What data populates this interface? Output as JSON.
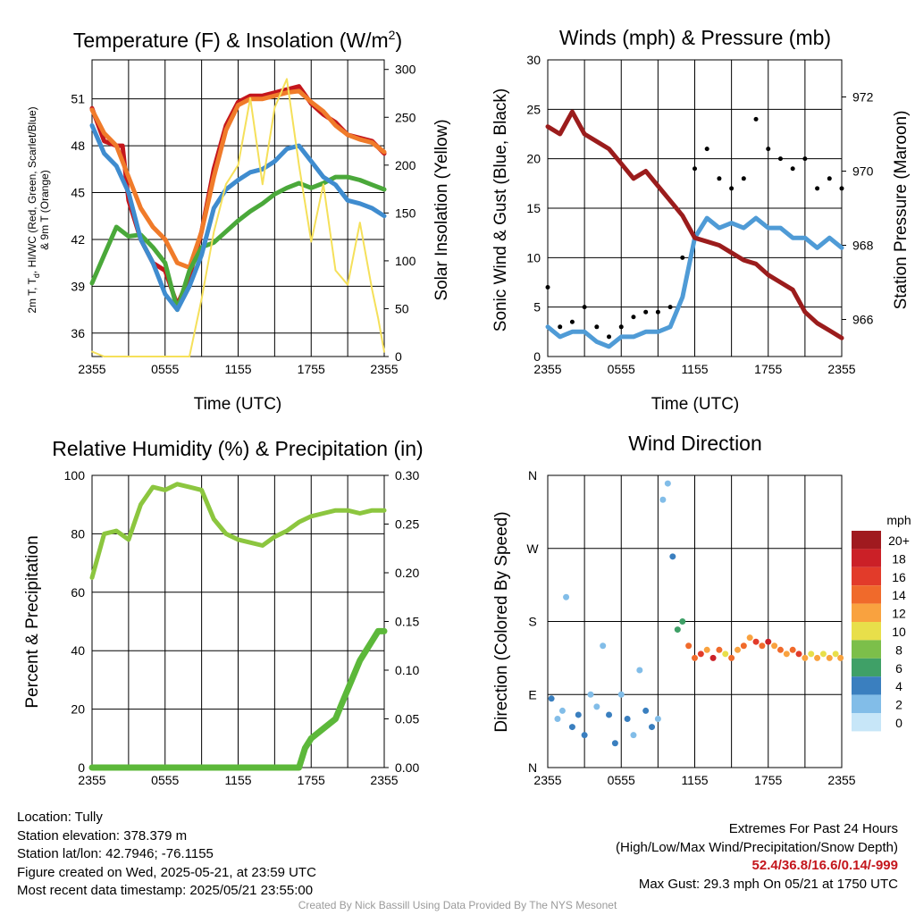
{
  "charts": {
    "temperature": {
      "title": "Temperature (F) & Insolation (W/m",
      "title_sup": "2",
      "title_end": ")",
      "ylabel_line1": "2m T, T",
      "ylabel_sub": "d",
      "ylabel_line1_end": ", HI/WC (Red, Green, Scarlet/Blue)",
      "ylabel_line2": "& 9m T (Orange)",
      "y2label": "Solar Insolation (Yellow)",
      "xlabel": "Time (UTC)"
    },
    "winds": {
      "title": "Winds (mph) & Pressure (mb)",
      "ylabel": "Sonic Wind & Gust (Blue, Black)",
      "y2label": "Station Pressure (Maroon)",
      "xlabel": "Time (UTC)"
    },
    "humidity": {
      "title": "Relative Humidity (%) & Precipitation (in)",
      "ylabel": "Percent & Precipitation"
    },
    "direction": {
      "title": "Wind Direction",
      "ylabel": "Direction (Colored By Speed)",
      "legend_unit": "mph",
      "legend_labels": [
        "20+",
        "18",
        "16",
        "14",
        "12",
        "10",
        "8",
        "6",
        "4",
        "2",
        "0"
      ],
      "legend_colors": [
        "#a01a1f",
        "#cb2027",
        "#e23b2a",
        "#f06a2b",
        "#f9a23f",
        "#e8df4a",
        "#7cbf4a",
        "#3fa067",
        "#3a7fbf",
        "#82bde8",
        "#c7e6f8"
      ]
    }
  },
  "chart_data": [
    {
      "type": "line",
      "title": "Temperature (F) & Insolation (W/m2)",
      "xlabel": "Time (UTC)",
      "x_ticks": [
        "2355",
        "0555",
        "1155",
        "1755",
        "2355"
      ],
      "x_hours": [
        0,
        24
      ],
      "y_ticks": [
        36,
        39,
        42,
        45,
        48,
        51
      ],
      "ylim": [
        34.5,
        53.5
      ],
      "y2_ticks": [
        0,
        50,
        100,
        150,
        200,
        250,
        300
      ],
      "y2lim": [
        0,
        310
      ],
      "series": [
        {
          "name": "2m T (Red)",
          "color": "#c4161c",
          "axis": "y",
          "x": [
            0,
            1,
            2,
            2.5,
            3,
            4,
            5,
            6,
            7,
            8,
            9,
            10,
            11,
            12,
            13,
            14,
            15,
            16,
            17,
            18,
            19,
            20,
            21,
            22,
            23,
            24
          ],
          "values": [
            50.4,
            48.3,
            48.0,
            48.0,
            44.5,
            42.0,
            40.5,
            40.0,
            37.8,
            39.6,
            42.5,
            46.5,
            49.3,
            50.8,
            51.2,
            51.2,
            51.4,
            51.6,
            51.8,
            50.7,
            50.0,
            49.5,
            48.7,
            48.5,
            48.3,
            47.5
          ]
        },
        {
          "name": "9m T (Orange)",
          "color": "#f07b2a",
          "axis": "y",
          "x": [
            0,
            1,
            2,
            3,
            4,
            5,
            6,
            7,
            8,
            9,
            10,
            11,
            12,
            13,
            14,
            15,
            16,
            17,
            18,
            19,
            20,
            21,
            22,
            23,
            24
          ],
          "values": [
            50.3,
            48.8,
            48.0,
            46.0,
            44.0,
            42.8,
            42.0,
            40.5,
            40.2,
            42.5,
            46.0,
            49.0,
            50.6,
            51.0,
            51.0,
            51.2,
            51.4,
            51.5,
            50.8,
            50.2,
            49.3,
            48.7,
            48.4,
            48.2,
            47.6
          ]
        },
        {
          "name": "Td (Green)",
          "color": "#4aa83a",
          "axis": "y",
          "x": [
            0,
            1,
            2,
            3,
            4,
            5,
            6,
            7,
            8,
            9,
            10,
            11,
            12,
            13,
            14,
            15,
            16,
            17,
            18,
            19,
            20,
            21,
            22,
            23,
            24
          ],
          "values": [
            39.2,
            41.0,
            42.8,
            42.2,
            42.3,
            41.5,
            40.5,
            37.5,
            40.0,
            41.5,
            41.8,
            42.5,
            43.2,
            43.8,
            44.3,
            44.9,
            45.3,
            45.6,
            45.3,
            45.6,
            46.0,
            46.0,
            45.8,
            45.5,
            45.2
          ]
        },
        {
          "name": "HI/WC (Scarlet/Blue)",
          "color": "#3f8ccf",
          "axis": "y",
          "x": [
            0,
            1,
            2,
            3,
            4,
            5,
            6,
            7,
            8,
            9,
            10,
            11,
            12,
            13,
            14,
            15,
            16,
            17,
            18,
            19,
            20,
            21,
            22,
            23,
            24
          ],
          "values": [
            49.3,
            47.5,
            46.7,
            45.0,
            42.0,
            40.5,
            38.5,
            37.5,
            39.0,
            41.0,
            44.0,
            45.2,
            45.8,
            46.3,
            46.5,
            47.0,
            47.8,
            48.0,
            47.0,
            46.0,
            45.5,
            44.5,
            44.3,
            44.0,
            43.5
          ]
        },
        {
          "name": "Solar Insolation (Yellow)",
          "color": "#f5e05a",
          "axis": "y2",
          "x": [
            0,
            1,
            2,
            3,
            4,
            5,
            6,
            7,
            8,
            9,
            10,
            11,
            12,
            13,
            14,
            15,
            16,
            17,
            18,
            19,
            20,
            21,
            22,
            23,
            23.5,
            24
          ],
          "values": [
            5,
            0,
            0,
            0,
            0,
            0,
            0,
            0,
            0,
            60,
            130,
            180,
            200,
            270,
            180,
            260,
            290,
            200,
            120,
            180,
            90,
            75,
            140,
            70,
            40,
            5
          ]
        }
      ]
    },
    {
      "type": "line",
      "title": "Winds (mph) & Pressure (mb)",
      "xlabel": "Time (UTC)",
      "x_ticks": [
        "2355",
        "0555",
        "1155",
        "1755",
        "2355"
      ],
      "x_hours": [
        0,
        24
      ],
      "y_ticks": [
        0,
        5,
        10,
        15,
        20,
        25,
        30
      ],
      "ylim": [
        0,
        30
      ],
      "y2_ticks": [
        966,
        968,
        970,
        972
      ],
      "y2lim": [
        965.0,
        973.0
      ],
      "series": [
        {
          "name": "Sonic Wind (Blue)",
          "color": "#4f9bd6",
          "axis": "y",
          "x": [
            0,
            1,
            2,
            3,
            4,
            5,
            6,
            7,
            8,
            9,
            10,
            11,
            12,
            13,
            14,
            15,
            16,
            17,
            18,
            19,
            20,
            21,
            22,
            23,
            24
          ],
          "values": [
            3,
            2,
            2.5,
            2.5,
            1.5,
            1,
            2,
            2,
            2.5,
            2.5,
            3,
            6,
            12,
            14,
            13,
            13.5,
            13,
            14,
            13,
            13,
            12,
            12,
            11,
            12,
            11
          ]
        },
        {
          "name": "Gust (Black)",
          "color": "#000000",
          "axis": "y",
          "x": [
            0,
            1,
            2,
            3,
            4,
            5,
            6,
            7,
            8,
            9,
            10,
            11,
            12,
            13,
            14,
            15,
            16,
            17,
            18,
            19,
            20,
            21,
            22,
            23,
            24
          ],
          "values": [
            7,
            3,
            3.5,
            5,
            3,
            2,
            3,
            4,
            4.5,
            4.5,
            5,
            10,
            19,
            21,
            18,
            17,
            18,
            24,
            21,
            20,
            19,
            20,
            17,
            18,
            17
          ]
        },
        {
          "name": "Station Pressure (Maroon)",
          "color": "#9b1c1c",
          "axis": "y2",
          "x": [
            0,
            1,
            2,
            3,
            4,
            5,
            6,
            7,
            8,
            9,
            10,
            11,
            12,
            13,
            14,
            15,
            16,
            17,
            18,
            19,
            20,
            21,
            22,
            23,
            24
          ],
          "values": [
            971.2,
            971.0,
            971.6,
            971.0,
            970.8,
            970.6,
            970.2,
            969.8,
            970.0,
            969.6,
            969.2,
            968.8,
            968.2,
            968.1,
            968.0,
            967.8,
            967.6,
            967.5,
            967.2,
            967.0,
            966.8,
            966.2,
            965.9,
            965.7,
            965.5
          ]
        }
      ]
    },
    {
      "type": "line",
      "title": "Relative Humidity (%) & Precipitation (in)",
      "x_ticks": [
        "2355",
        "0555",
        "1155",
        "1755",
        "2355"
      ],
      "x_hours": [
        0,
        24
      ],
      "y_ticks": [
        0,
        20,
        40,
        60,
        80,
        100
      ],
      "ylim": [
        0,
        100
      ],
      "y2_ticks": [
        "0.00",
        "0.05",
        "0.10",
        "0.15",
        "0.20",
        "0.25",
        "0.30"
      ],
      "y2lim": [
        0,
        0.3
      ],
      "series": [
        {
          "name": "Relative Humidity",
          "color": "#8cc63f",
          "axis": "y",
          "x": [
            0,
            1,
            2,
            3,
            4,
            5,
            6,
            7,
            8,
            9,
            10,
            11,
            12,
            13,
            14,
            15,
            16,
            17,
            18,
            19,
            20,
            21,
            22,
            23,
            24
          ],
          "values": [
            65,
            80,
            81,
            78,
            90,
            96,
            95,
            97,
            96,
            95,
            85,
            80,
            78,
            77,
            76,
            79,
            81,
            84,
            86,
            87,
            88,
            88,
            87,
            88,
            88
          ]
        },
        {
          "name": "Precipitation",
          "color": "#5cb83a",
          "axis": "y2",
          "x": [
            0,
            17,
            17.5,
            18,
            19,
            20,
            21,
            22,
            23,
            23.5,
            24
          ],
          "values": [
            0,
            0,
            0.02,
            0.03,
            0.04,
            0.05,
            0.08,
            0.11,
            0.13,
            0.14,
            0.14
          ]
        }
      ]
    },
    {
      "type": "scatter",
      "title": "Wind Direction",
      "ylabel": "Direction (Colored By Speed)",
      "x_ticks": [
        "2355",
        "0555",
        "1155",
        "1755",
        "2355"
      ],
      "x_hours": [
        0,
        24
      ],
      "y_ticks": [
        "N",
        "E",
        "S",
        "W",
        "N"
      ],
      "ylim": [
        0,
        360
      ],
      "points": [
        {
          "x": 0.3,
          "y": 85,
          "mph": 4
        },
        {
          "x": 0.8,
          "y": 60,
          "mph": 2
        },
        {
          "x": 1.2,
          "y": 70,
          "mph": 1
        },
        {
          "x": 1.5,
          "y": 210,
          "mph": 2
        },
        {
          "x": 2.0,
          "y": 50,
          "mph": 3
        },
        {
          "x": 2.5,
          "y": 65,
          "mph": 4
        },
        {
          "x": 3.0,
          "y": 40,
          "mph": 3
        },
        {
          "x": 3.5,
          "y": 90,
          "mph": 2
        },
        {
          "x": 4.0,
          "y": 75,
          "mph": 1
        },
        {
          "x": 4.5,
          "y": 150,
          "mph": 1
        },
        {
          "x": 5.0,
          "y": 65,
          "mph": 4
        },
        {
          "x": 5.5,
          "y": 30,
          "mph": 3
        },
        {
          "x": 6.0,
          "y": 90,
          "mph": 2
        },
        {
          "x": 6.5,
          "y": 60,
          "mph": 4
        },
        {
          "x": 7.0,
          "y": 40,
          "mph": 2
        },
        {
          "x": 7.5,
          "y": 120,
          "mph": 2
        },
        {
          "x": 8.0,
          "y": 70,
          "mph": 3
        },
        {
          "x": 8.5,
          "y": 50,
          "mph": 3
        },
        {
          "x": 9.0,
          "y": 60,
          "mph": 2
        },
        {
          "x": 9.4,
          "y": 330,
          "mph": 2
        },
        {
          "x": 9.8,
          "y": 350,
          "mph": 1
        },
        {
          "x": 10.2,
          "y": 260,
          "mph": 4
        },
        {
          "x": 10.6,
          "y": 170,
          "mph": 6
        },
        {
          "x": 11.0,
          "y": 180,
          "mph": 5
        },
        {
          "x": 11.5,
          "y": 150,
          "mph": 14
        },
        {
          "x": 12.0,
          "y": 135,
          "mph": 13
        },
        {
          "x": 12.5,
          "y": 140,
          "mph": 16
        },
        {
          "x": 13.0,
          "y": 145,
          "mph": 12
        },
        {
          "x": 13.5,
          "y": 135,
          "mph": 17
        },
        {
          "x": 14.0,
          "y": 145,
          "mph": 14
        },
        {
          "x": 14.5,
          "y": 140,
          "mph": 10
        },
        {
          "x": 15.0,
          "y": 135,
          "mph": 13
        },
        {
          "x": 15.5,
          "y": 145,
          "mph": 11
        },
        {
          "x": 16.0,
          "y": 150,
          "mph": 14
        },
        {
          "x": 16.5,
          "y": 160,
          "mph": 12
        },
        {
          "x": 17.0,
          "y": 155,
          "mph": 16
        },
        {
          "x": 17.5,
          "y": 150,
          "mph": 13
        },
        {
          "x": 18.0,
          "y": 155,
          "mph": 18
        },
        {
          "x": 18.5,
          "y": 150,
          "mph": 12
        },
        {
          "x": 19.0,
          "y": 145,
          "mph": 14
        },
        {
          "x": 19.5,
          "y": 140,
          "mph": 11
        },
        {
          "x": 20.0,
          "y": 145,
          "mph": 13
        },
        {
          "x": 20.5,
          "y": 140,
          "mph": 15
        },
        {
          "x": 21.0,
          "y": 135,
          "mph": 12
        },
        {
          "x": 21.5,
          "y": 140,
          "mph": 10
        },
        {
          "x": 22.0,
          "y": 135,
          "mph": 12
        },
        {
          "x": 22.5,
          "y": 140,
          "mph": 9
        },
        {
          "x": 23.0,
          "y": 135,
          "mph": 11
        },
        {
          "x": 23.5,
          "y": 140,
          "mph": 10
        },
        {
          "x": 23.9,
          "y": 135,
          "mph": 11
        }
      ]
    }
  ],
  "info_left": [
    "Location: Tully",
    "Station elevation: 378.379 m",
    "Station lat/lon: 42.7946; -76.1155",
    "Figure created on Wed, 2025-05-21, at 23:59 UTC",
    "Most recent data timestamp: 2025/05/21 23:55:00"
  ],
  "info_right": {
    "line1": "Extremes For Past 24 Hours",
    "line2": "(High/Low/Max Wind/Precipitation/Snow Depth)",
    "values": "52.4/36.8/16.6/0.14/-999",
    "gust": "Max Gust: 29.3 mph On 05/21 at 1750 UTC"
  },
  "credit": "Created By Nick Bassill Using Data Provided By The NYS Mesonet"
}
